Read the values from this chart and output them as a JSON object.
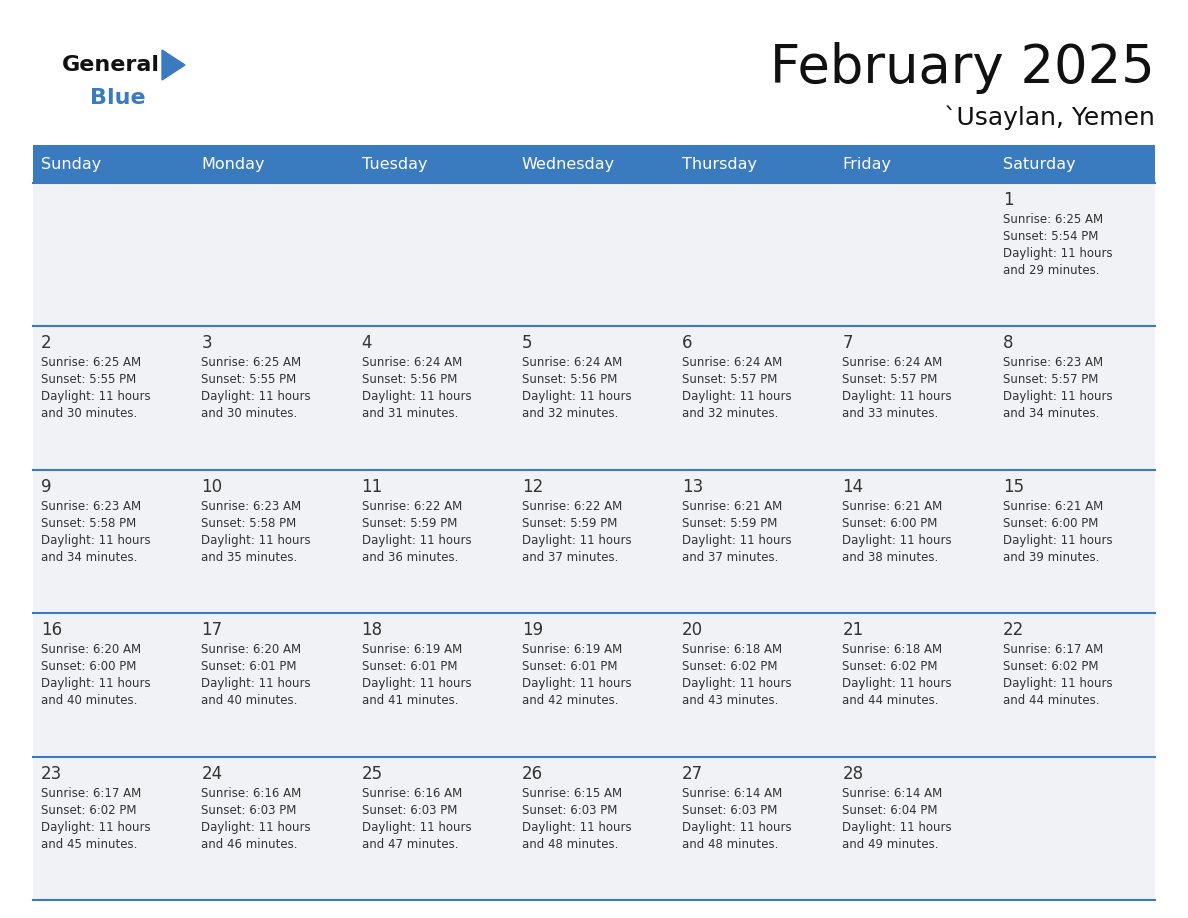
{
  "title": "February 2025",
  "subtitle": "`Usaylan, Yemen",
  "header_color": "#3a7bbf",
  "header_text_color": "#ffffff",
  "cell_bg_even": "#f0f2f5",
  "cell_bg_odd": "#ffffff",
  "border_color": "#3a7bbf",
  "text_color": "#333333",
  "days_of_week": [
    "Sunday",
    "Monday",
    "Tuesday",
    "Wednesday",
    "Thursday",
    "Friday",
    "Saturday"
  ],
  "weeks": [
    [
      {
        "day": null,
        "info": null
      },
      {
        "day": null,
        "info": null
      },
      {
        "day": null,
        "info": null
      },
      {
        "day": null,
        "info": null
      },
      {
        "day": null,
        "info": null
      },
      {
        "day": null,
        "info": null
      },
      {
        "day": 1,
        "info": "Sunrise: 6:25 AM\nSunset: 5:54 PM\nDaylight: 11 hours\nand 29 minutes."
      }
    ],
    [
      {
        "day": 2,
        "info": "Sunrise: 6:25 AM\nSunset: 5:55 PM\nDaylight: 11 hours\nand 30 minutes."
      },
      {
        "day": 3,
        "info": "Sunrise: 6:25 AM\nSunset: 5:55 PM\nDaylight: 11 hours\nand 30 minutes."
      },
      {
        "day": 4,
        "info": "Sunrise: 6:24 AM\nSunset: 5:56 PM\nDaylight: 11 hours\nand 31 minutes."
      },
      {
        "day": 5,
        "info": "Sunrise: 6:24 AM\nSunset: 5:56 PM\nDaylight: 11 hours\nand 32 minutes."
      },
      {
        "day": 6,
        "info": "Sunrise: 6:24 AM\nSunset: 5:57 PM\nDaylight: 11 hours\nand 32 minutes."
      },
      {
        "day": 7,
        "info": "Sunrise: 6:24 AM\nSunset: 5:57 PM\nDaylight: 11 hours\nand 33 minutes."
      },
      {
        "day": 8,
        "info": "Sunrise: 6:23 AM\nSunset: 5:57 PM\nDaylight: 11 hours\nand 34 minutes."
      }
    ],
    [
      {
        "day": 9,
        "info": "Sunrise: 6:23 AM\nSunset: 5:58 PM\nDaylight: 11 hours\nand 34 minutes."
      },
      {
        "day": 10,
        "info": "Sunrise: 6:23 AM\nSunset: 5:58 PM\nDaylight: 11 hours\nand 35 minutes."
      },
      {
        "day": 11,
        "info": "Sunrise: 6:22 AM\nSunset: 5:59 PM\nDaylight: 11 hours\nand 36 minutes."
      },
      {
        "day": 12,
        "info": "Sunrise: 6:22 AM\nSunset: 5:59 PM\nDaylight: 11 hours\nand 37 minutes."
      },
      {
        "day": 13,
        "info": "Sunrise: 6:21 AM\nSunset: 5:59 PM\nDaylight: 11 hours\nand 37 minutes."
      },
      {
        "day": 14,
        "info": "Sunrise: 6:21 AM\nSunset: 6:00 PM\nDaylight: 11 hours\nand 38 minutes."
      },
      {
        "day": 15,
        "info": "Sunrise: 6:21 AM\nSunset: 6:00 PM\nDaylight: 11 hours\nand 39 minutes."
      }
    ],
    [
      {
        "day": 16,
        "info": "Sunrise: 6:20 AM\nSunset: 6:00 PM\nDaylight: 11 hours\nand 40 minutes."
      },
      {
        "day": 17,
        "info": "Sunrise: 6:20 AM\nSunset: 6:01 PM\nDaylight: 11 hours\nand 40 minutes."
      },
      {
        "day": 18,
        "info": "Sunrise: 6:19 AM\nSunset: 6:01 PM\nDaylight: 11 hours\nand 41 minutes."
      },
      {
        "day": 19,
        "info": "Sunrise: 6:19 AM\nSunset: 6:01 PM\nDaylight: 11 hours\nand 42 minutes."
      },
      {
        "day": 20,
        "info": "Sunrise: 6:18 AM\nSunset: 6:02 PM\nDaylight: 11 hours\nand 43 minutes."
      },
      {
        "day": 21,
        "info": "Sunrise: 6:18 AM\nSunset: 6:02 PM\nDaylight: 11 hours\nand 44 minutes."
      },
      {
        "day": 22,
        "info": "Sunrise: 6:17 AM\nSunset: 6:02 PM\nDaylight: 11 hours\nand 44 minutes."
      }
    ],
    [
      {
        "day": 23,
        "info": "Sunrise: 6:17 AM\nSunset: 6:02 PM\nDaylight: 11 hours\nand 45 minutes."
      },
      {
        "day": 24,
        "info": "Sunrise: 6:16 AM\nSunset: 6:03 PM\nDaylight: 11 hours\nand 46 minutes."
      },
      {
        "day": 25,
        "info": "Sunrise: 6:16 AM\nSunset: 6:03 PM\nDaylight: 11 hours\nand 47 minutes."
      },
      {
        "day": 26,
        "info": "Sunrise: 6:15 AM\nSunset: 6:03 PM\nDaylight: 11 hours\nand 48 minutes."
      },
      {
        "day": 27,
        "info": "Sunrise: 6:14 AM\nSunset: 6:03 PM\nDaylight: 11 hours\nand 48 minutes."
      },
      {
        "day": 28,
        "info": "Sunrise: 6:14 AM\nSunset: 6:04 PM\nDaylight: 11 hours\nand 49 minutes."
      },
      {
        "day": null,
        "info": null
      }
    ]
  ],
  "logo_general_color": "#111111",
  "logo_blue_color": "#3a7bbf",
  "logo_triangle_color": "#3a7bbf"
}
